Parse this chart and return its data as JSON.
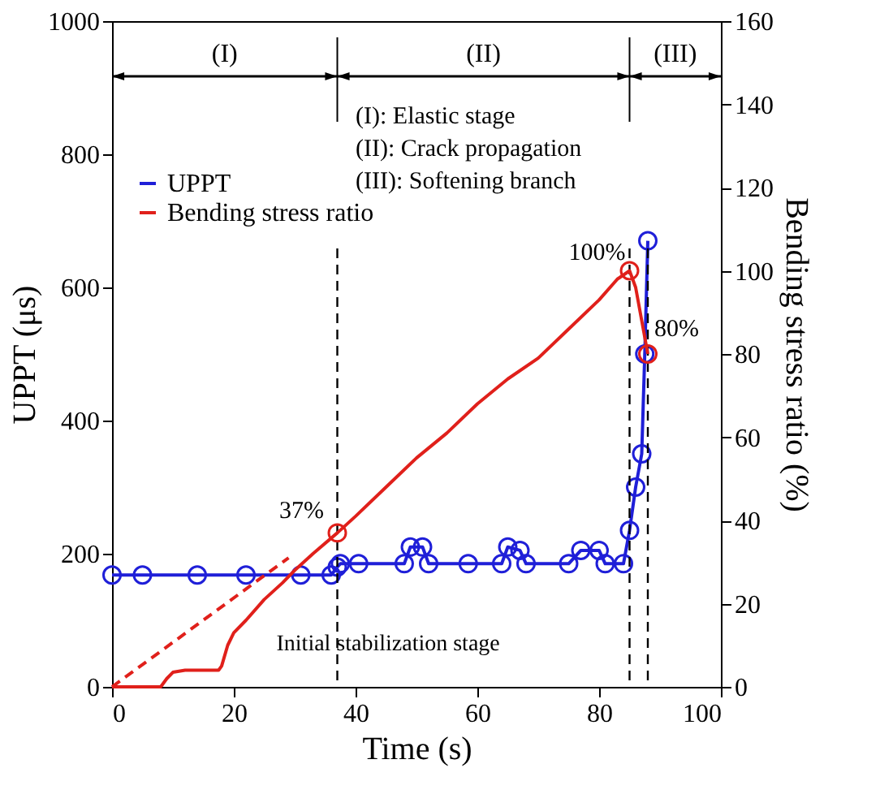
{
  "chart_data": {
    "type": "line",
    "xlabel": "Time (s)",
    "ylabel": "UPPT (μs)",
    "y2label": "Bending stress ratio (%)",
    "xlim": [
      0,
      100
    ],
    "xticks": [
      0,
      20,
      40,
      60,
      80,
      100
    ],
    "ylim": [
      0,
      1000
    ],
    "yticks": [
      0,
      200,
      400,
      600,
      800,
      1000
    ],
    "y2lim": [
      0,
      160
    ],
    "y2ticks": [
      0,
      20,
      40,
      60,
      80,
      100,
      120,
      140,
      160
    ],
    "grid": false,
    "legend": "top left",
    "series": [
      {
        "name": "UPPT",
        "color": "#1f1fd8",
        "marker": "circle",
        "line_style": "solid",
        "x": [
          0,
          5,
          14,
          22,
          31,
          36,
          37,
          37.5,
          40.5,
          48,
          49,
          51,
          52,
          58.5,
          64,
          65,
          67,
          68,
          75,
          77,
          80,
          81,
          84,
          85,
          86,
          87,
          87.5,
          88
        ],
        "values": [
          168,
          168,
          168,
          168,
          168,
          168,
          180,
          185,
          185,
          185,
          210,
          210,
          185,
          185,
          185,
          210,
          205,
          185,
          185,
          205,
          205,
          185,
          185,
          235,
          300,
          350,
          500,
          670
        ]
      },
      {
        "name": "Bending stress ratio",
        "color": "#e0201b",
        "axis": "y2",
        "marker": "none",
        "line_style": "solid",
        "x": [
          0,
          8,
          9,
          10,
          12,
          17.5,
          18,
          19,
          20,
          22,
          25,
          28,
          30,
          33,
          37,
          40,
          45,
          50,
          55,
          60,
          65,
          70,
          75,
          80,
          83,
          85,
          86,
          88
        ],
        "values": [
          0,
          0,
          2,
          3.5,
          4,
          4,
          5,
          10,
          13,
          16,
          21,
          25,
          28,
          32,
          37,
          41,
          48,
          55,
          61,
          68,
          74,
          79,
          86,
          93,
          98,
          100,
          96,
          80
        ]
      },
      {
        "color": "#e0201b",
        "axis": "y2",
        "marker": "none",
        "line_style": "dashed",
        "x": [
          0,
          29
        ],
        "values": [
          0,
          31
        ]
      },
      {
        "type": "scatter",
        "color": "#e0201b",
        "axis": "y2",
        "marker": "circle",
        "x": [
          37,
          85,
          88
        ],
        "values": [
          37,
          100,
          80
        ]
      }
    ],
    "ref_lines": [
      {
        "axis": "x",
        "value": 37,
        "line_style": "dashed"
      },
      {
        "axis": "x",
        "value": 85,
        "line_style": "dashed"
      },
      {
        "axis": "x",
        "value": 88,
        "line_style": "dashed"
      }
    ],
    "annotations": [
      "(I)",
      "(II)",
      "(III)",
      "37%",
      "100%",
      "80%",
      {
        "text": "Initial stabilization stage",
        "x": 19,
        "y": 31
      },
      "(I):   Elastic stage",
      "(II):  Crack propagation",
      "(III): Softening branch"
    ]
  }
}
